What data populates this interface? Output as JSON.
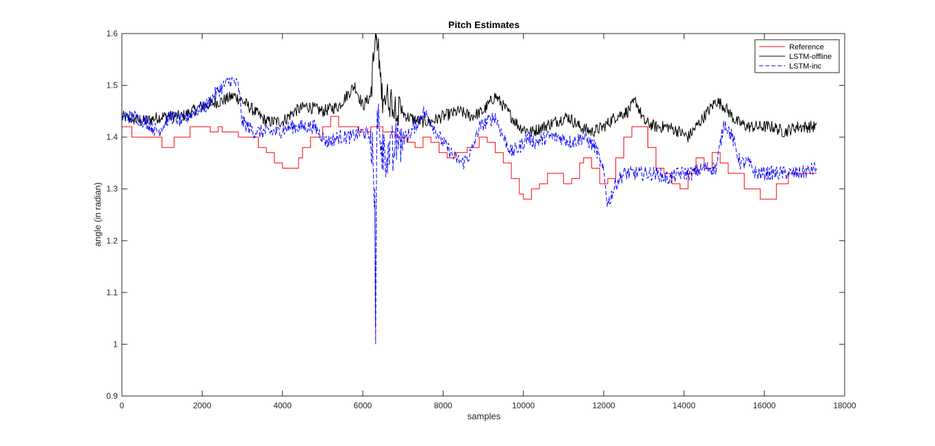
{
  "chart_data": {
    "type": "line",
    "title": "Pitch Estimates",
    "xlabel": "samples",
    "ylabel": "angle (in radian)",
    "xlim": [
      0,
      18000
    ],
    "ylim": [
      0.9,
      1.6
    ],
    "xticks": [
      0,
      2000,
      4000,
      6000,
      8000,
      10000,
      12000,
      14000,
      16000,
      18000
    ],
    "yticks": [
      0.9,
      1,
      1.1,
      1.2,
      1.3,
      1.4,
      1.5,
      1.6
    ],
    "xtick_labels": [
      "0",
      "2000",
      "4000",
      "6000",
      "8000",
      "10000",
      "12000",
      "14000",
      "16000",
      "18000"
    ],
    "ytick_labels": [
      "0.9",
      "1",
      "1.1",
      "1.2",
      "1.3",
      "1.4",
      "1.5",
      "1.6"
    ],
    "grid": false,
    "legend_position": "top-right",
    "series": [
      {
        "name": "Reference",
        "color": "#ff0000",
        "style": "solid",
        "points": [
          [
            0,
            1.42
          ],
          [
            150,
            1.42
          ],
          [
            250,
            1.4
          ],
          [
            800,
            1.4
          ],
          [
            1000,
            1.38
          ],
          [
            1200,
            1.38
          ],
          [
            1300,
            1.4
          ],
          [
            1600,
            1.4
          ],
          [
            1700,
            1.42
          ],
          [
            2000,
            1.42
          ],
          [
            2200,
            1.41
          ],
          [
            2400,
            1.42
          ],
          [
            2500,
            1.41
          ],
          [
            2800,
            1.41
          ],
          [
            2900,
            1.4
          ],
          [
            3200,
            1.4
          ],
          [
            3400,
            1.38
          ],
          [
            3600,
            1.37
          ],
          [
            3800,
            1.35
          ],
          [
            4000,
            1.34
          ],
          [
            4300,
            1.34
          ],
          [
            4400,
            1.36
          ],
          [
            4500,
            1.38
          ],
          [
            4700,
            1.4
          ],
          [
            5000,
            1.42
          ],
          [
            5200,
            1.44
          ],
          [
            5400,
            1.42
          ],
          [
            5700,
            1.42
          ],
          [
            5900,
            1.41
          ],
          [
            6200,
            1.42
          ],
          [
            6500,
            1.41
          ],
          [
            6800,
            1.4
          ],
          [
            7100,
            1.39
          ],
          [
            7300,
            1.38
          ],
          [
            7500,
            1.4
          ],
          [
            7700,
            1.39
          ],
          [
            7900,
            1.37
          ],
          [
            8100,
            1.36
          ],
          [
            8300,
            1.37
          ],
          [
            8600,
            1.38
          ],
          [
            8900,
            1.4
          ],
          [
            9100,
            1.39
          ],
          [
            9300,
            1.37
          ],
          [
            9500,
            1.35
          ],
          [
            9700,
            1.32
          ],
          [
            9900,
            1.29
          ],
          [
            10000,
            1.28
          ],
          [
            10200,
            1.3
          ],
          [
            10400,
            1.31
          ],
          [
            10600,
            1.33
          ],
          [
            10800,
            1.33
          ],
          [
            11000,
            1.31
          ],
          [
            11200,
            1.32
          ],
          [
            11400,
            1.35
          ],
          [
            11500,
            1.36
          ],
          [
            11700,
            1.34
          ],
          [
            11900,
            1.31
          ],
          [
            12100,
            1.32
          ],
          [
            12300,
            1.36
          ],
          [
            12500,
            1.4
          ],
          [
            12700,
            1.42
          ],
          [
            12900,
            1.42
          ],
          [
            13100,
            1.38
          ],
          [
            13300,
            1.34
          ],
          [
            13500,
            1.33
          ],
          [
            13700,
            1.31
          ],
          [
            13900,
            1.3
          ],
          [
            14100,
            1.33
          ],
          [
            14300,
            1.36
          ],
          [
            14500,
            1.34
          ],
          [
            14700,
            1.37
          ],
          [
            14900,
            1.35
          ],
          [
            15100,
            1.33
          ],
          [
            15300,
            1.33
          ],
          [
            15500,
            1.3
          ],
          [
            15700,
            1.3
          ],
          [
            15900,
            1.28
          ],
          [
            16100,
            1.28
          ],
          [
            16300,
            1.31
          ],
          [
            16600,
            1.33
          ],
          [
            16900,
            1.33
          ],
          [
            17300,
            1.33
          ]
        ]
      },
      {
        "name": "LSTM-offline",
        "color": "#000000",
        "style": "solid",
        "points": [
          [
            0,
            1.44
          ],
          [
            500,
            1.43
          ],
          [
            1000,
            1.44
          ],
          [
            1500,
            1.44
          ],
          [
            2000,
            1.46
          ],
          [
            2500,
            1.47
          ],
          [
            2800,
            1.48
          ],
          [
            3000,
            1.47
          ],
          [
            3300,
            1.45
          ],
          [
            3600,
            1.43
          ],
          [
            4000,
            1.43
          ],
          [
            4300,
            1.45
          ],
          [
            4600,
            1.46
          ],
          [
            5000,
            1.45
          ],
          [
            5400,
            1.46
          ],
          [
            5800,
            1.5
          ],
          [
            6000,
            1.46
          ],
          [
            6200,
            1.48
          ],
          [
            6320,
            1.6
          ],
          [
            6500,
            1.48
          ],
          [
            6800,
            1.46
          ],
          [
            7100,
            1.44
          ],
          [
            7400,
            1.43
          ],
          [
            7700,
            1.43
          ],
          [
            8000,
            1.44
          ],
          [
            8400,
            1.45
          ],
          [
            8700,
            1.44
          ],
          [
            9000,
            1.45
          ],
          [
            9300,
            1.48
          ],
          [
            9600,
            1.45
          ],
          [
            9900,
            1.42
          ],
          [
            10200,
            1.41
          ],
          [
            10500,
            1.42
          ],
          [
            10800,
            1.43
          ],
          [
            11100,
            1.44
          ],
          [
            11400,
            1.42
          ],
          [
            11700,
            1.41
          ],
          [
            12000,
            1.42
          ],
          [
            12300,
            1.44
          ],
          [
            12600,
            1.45
          ],
          [
            12800,
            1.47
          ],
          [
            13000,
            1.43
          ],
          [
            13300,
            1.42
          ],
          [
            13600,
            1.42
          ],
          [
            13900,
            1.41
          ],
          [
            14100,
            1.4
          ],
          [
            14300,
            1.42
          ],
          [
            14600,
            1.45
          ],
          [
            14800,
            1.47
          ],
          [
            15000,
            1.46
          ],
          [
            15300,
            1.43
          ],
          [
            15600,
            1.42
          ],
          [
            15900,
            1.42
          ],
          [
            16200,
            1.42
          ],
          [
            16500,
            1.41
          ],
          [
            16800,
            1.42
          ],
          [
            17100,
            1.42
          ],
          [
            17300,
            1.42
          ]
        ]
      },
      {
        "name": "LSTM-inc",
        "color": "#0000ff",
        "style": "dashed",
        "points": [
          [
            0,
            1.44
          ],
          [
            300,
            1.44
          ],
          [
            600,
            1.43
          ],
          [
            900,
            1.41
          ],
          [
            1200,
            1.44
          ],
          [
            1500,
            1.43
          ],
          [
            1800,
            1.45
          ],
          [
            2100,
            1.46
          ],
          [
            2400,
            1.49
          ],
          [
            2700,
            1.51
          ],
          [
            2900,
            1.5
          ],
          [
            3000,
            1.43
          ],
          [
            3300,
            1.41
          ],
          [
            3600,
            1.41
          ],
          [
            3900,
            1.41
          ],
          [
            4200,
            1.42
          ],
          [
            4500,
            1.42
          ],
          [
            4800,
            1.42
          ],
          [
            5100,
            1.39
          ],
          [
            5400,
            1.4
          ],
          [
            5700,
            1.4
          ],
          [
            6000,
            1.41
          ],
          [
            6200,
            1.4
          ],
          [
            6300,
            1.3
          ],
          [
            6320,
            1.0
          ],
          [
            6350,
            1.43
          ],
          [
            6400,
            1.42
          ],
          [
            6500,
            1.38
          ],
          [
            6700,
            1.36
          ],
          [
            6900,
            1.4
          ],
          [
            7100,
            1.4
          ],
          [
            7300,
            1.42
          ],
          [
            7500,
            1.45
          ],
          [
            7700,
            1.43
          ],
          [
            7900,
            1.4
          ],
          [
            8100,
            1.38
          ],
          [
            8300,
            1.36
          ],
          [
            8500,
            1.35
          ],
          [
            8700,
            1.37
          ],
          [
            8900,
            1.42
          ],
          [
            9100,
            1.43
          ],
          [
            9300,
            1.44
          ],
          [
            9500,
            1.4
          ],
          [
            9700,
            1.37
          ],
          [
            9900,
            1.38
          ],
          [
            10100,
            1.4
          ],
          [
            10300,
            1.39
          ],
          [
            10600,
            1.4
          ],
          [
            10900,
            1.4
          ],
          [
            11200,
            1.39
          ],
          [
            11500,
            1.4
          ],
          [
            11800,
            1.38
          ],
          [
            12000,
            1.33
          ],
          [
            12100,
            1.27
          ],
          [
            12300,
            1.31
          ],
          [
            12500,
            1.33
          ],
          [
            12700,
            1.33
          ],
          [
            13000,
            1.33
          ],
          [
            13300,
            1.33
          ],
          [
            13600,
            1.32
          ],
          [
            13900,
            1.33
          ],
          [
            14200,
            1.33
          ],
          [
            14500,
            1.34
          ],
          [
            14800,
            1.34
          ],
          [
            15000,
            1.43
          ],
          [
            15200,
            1.4
          ],
          [
            15400,
            1.35
          ],
          [
            15600,
            1.35
          ],
          [
            15800,
            1.33
          ],
          [
            16000,
            1.33
          ],
          [
            16300,
            1.33
          ],
          [
            16600,
            1.33
          ],
          [
            16900,
            1.33
          ],
          [
            17300,
            1.34
          ]
        ]
      }
    ]
  }
}
